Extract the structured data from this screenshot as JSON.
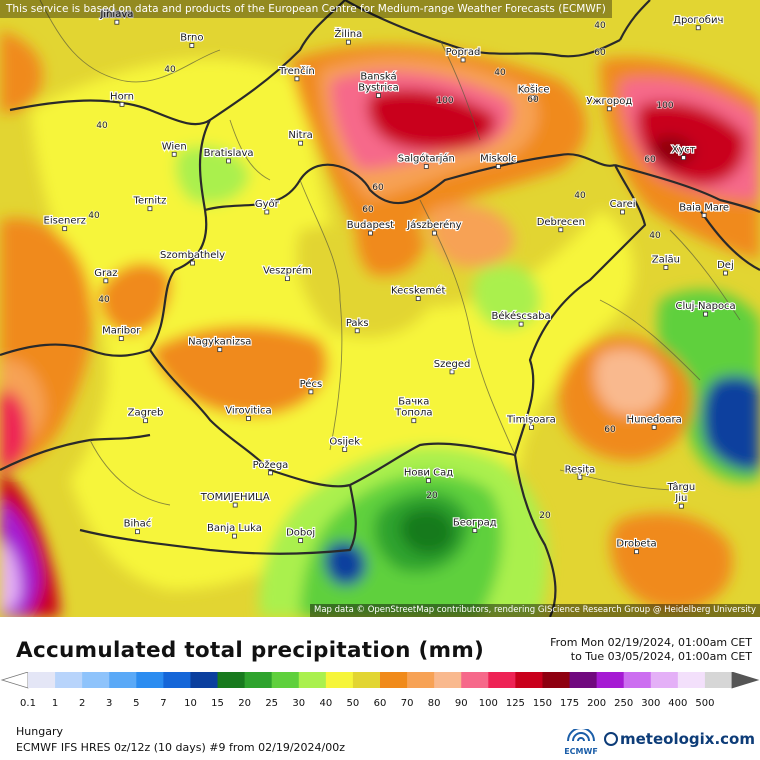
{
  "map": {
    "notice": "This service is based on data and products of the European Centre for Medium-range Weather Forecasts (ECMWF)",
    "attribution": "Map data © OpenStreetMap contributors, rendering GIScience Research Group @ Heidelberg University",
    "cities": [
      {
        "name": "Jihlava",
        "lon": 15.59,
        "lat": 49.4
      },
      {
        "name": "Brno",
        "lon": 16.61,
        "lat": 49.19
      },
      {
        "name": "Žilina",
        "lon": 18.74,
        "lat": 49.22
      },
      {
        "name": "Poprad",
        "lon": 20.3,
        "lat": 49.06
      },
      {
        "name": "Дрогобич",
        "lon": 23.5,
        "lat": 49.35
      },
      {
        "name": "Trenčín",
        "lon": 18.04,
        "lat": 48.89
      },
      {
        "name": "Banská Bystrica",
        "lon": 19.15,
        "lat": 48.74
      },
      {
        "name": "Košice",
        "lon": 21.26,
        "lat": 48.72
      },
      {
        "name": "Ужгород",
        "lon": 22.29,
        "lat": 48.62
      },
      {
        "name": "Horn",
        "lon": 15.66,
        "lat": 48.66
      },
      {
        "name": "Wien",
        "lon": 16.37,
        "lat": 48.21
      },
      {
        "name": "Bratislava",
        "lon": 17.11,
        "lat": 48.15
      },
      {
        "name": "Nitra",
        "lon": 18.09,
        "lat": 48.31
      },
      {
        "name": "Salgótarján",
        "lon": 19.8,
        "lat": 48.1
      },
      {
        "name": "Miskolc",
        "lon": 20.78,
        "lat": 48.1
      },
      {
        "name": "Хуст",
        "lon": 23.3,
        "lat": 48.18
      },
      {
        "name": "Ternitz",
        "lon": 16.04,
        "lat": 47.72
      },
      {
        "name": "Győr",
        "lon": 17.63,
        "lat": 47.69
      },
      {
        "name": "Carei",
        "lon": 22.47,
        "lat": 47.69
      },
      {
        "name": "Baia Mare",
        "lon": 23.58,
        "lat": 47.66
      },
      {
        "name": "Eisenerz",
        "lon": 14.88,
        "lat": 47.54
      },
      {
        "name": "Budapest",
        "lon": 19.04,
        "lat": 47.5
      },
      {
        "name": "Jászberény",
        "lon": 19.91,
        "lat": 47.5
      },
      {
        "name": "Debrecen",
        "lon": 21.63,
        "lat": 47.53
      },
      {
        "name": "Szombathely",
        "lon": 16.62,
        "lat": 47.23
      },
      {
        "name": "Zalău",
        "lon": 23.06,
        "lat": 47.19
      },
      {
        "name": "Graz",
        "lon": 15.44,
        "lat": 47.07
      },
      {
        "name": "Veszprém",
        "lon": 17.91,
        "lat": 47.09
      },
      {
        "name": "Kecskemét",
        "lon": 19.69,
        "lat": 46.91
      },
      {
        "name": "Dej",
        "lon": 23.87,
        "lat": 47.14
      },
      {
        "name": "Cluj-Napoca",
        "lon": 23.6,
        "lat": 46.77
      },
      {
        "name": "Maribor",
        "lon": 15.65,
        "lat": 46.55
      },
      {
        "name": "Paks",
        "lon": 18.86,
        "lat": 46.62
      },
      {
        "name": "Békéscsaba",
        "lon": 21.09,
        "lat": 46.68
      },
      {
        "name": "Nagykanizsa",
        "lon": 16.99,
        "lat": 46.45
      },
      {
        "name": "Szeged",
        "lon": 20.15,
        "lat": 46.25
      },
      {
        "name": "Pécs",
        "lon": 18.23,
        "lat": 46.07
      },
      {
        "name": "Zagreb",
        "lon": 15.98,
        "lat": 45.81
      },
      {
        "name": "Virovitica",
        "lon": 17.38,
        "lat": 45.83
      },
      {
        "name": "Бачка Топола",
        "lon": 19.63,
        "lat": 45.81
      },
      {
        "name": "Timișoara",
        "lon": 21.23,
        "lat": 45.75
      },
      {
        "name": "Hunedoara",
        "lon": 22.9,
        "lat": 45.75
      },
      {
        "name": "Osijek",
        "lon": 18.69,
        "lat": 45.55
      },
      {
        "name": "Požega",
        "lon": 17.68,
        "lat": 45.34
      },
      {
        "name": "Нови Сад",
        "lon": 19.83,
        "lat": 45.27
      },
      {
        "name": "Reșița",
        "lon": 21.89,
        "lat": 45.3
      },
      {
        "name": "Târgu Jiu",
        "lon": 23.27,
        "lat": 45.04
      },
      {
        "name": "ТОМИЈЕНИЦА",
        "lon": 17.2,
        "lat": 45.05
      },
      {
        "name": "Bihać",
        "lon": 15.87,
        "lat": 44.81
      },
      {
        "name": "Banja Luka",
        "lon": 17.19,
        "lat": 44.77
      },
      {
        "name": "Doboj",
        "lon": 18.09,
        "lat": 44.73
      },
      {
        "name": "Београд",
        "lon": 20.46,
        "lat": 44.82
      },
      {
        "name": "Drobeta",
        "lon": 22.66,
        "lat": 44.63
      }
    ],
    "contour_labels": [
      "40",
      "40",
      "40",
      "40",
      "40",
      "40",
      "40",
      "40",
      "60",
      "60",
      "60",
      "60",
      "60",
      "60",
      "100",
      "100",
      "20",
      "20"
    ]
  },
  "header": {
    "title": "Accumulated total precipitation (mm)",
    "period_from": "From Mon 02/19/2024, 01:00am CET",
    "period_to": "to Tue 03/05/2024, 01:00am CET"
  },
  "legend": {
    "unit": "mm",
    "classes": [
      {
        "label": "0.1",
        "color": "#e4e6f6"
      },
      {
        "label": "1",
        "color": "#b8d4fb"
      },
      {
        "label": "2",
        "color": "#8ec3fb"
      },
      {
        "label": "3",
        "color": "#5aa9f7"
      },
      {
        "label": "5",
        "color": "#2b8cf0"
      },
      {
        "label": "7",
        "color": "#1566d8"
      },
      {
        "label": "10",
        "color": "#0b3f9e"
      },
      {
        "label": "15",
        "color": "#187a1e"
      },
      {
        "label": "20",
        "color": "#2ea32d"
      },
      {
        "label": "25",
        "color": "#5fd03d"
      },
      {
        "label": "30",
        "color": "#aaf04e"
      },
      {
        "label": "40",
        "color": "#f6f53a"
      },
      {
        "label": "50",
        "color": "#e2d532"
      },
      {
        "label": "60",
        "color": "#f08a1a"
      },
      {
        "label": "70",
        "color": "#f7a255"
      },
      {
        "label": "80",
        "color": "#f9b98e"
      },
      {
        "label": "90",
        "color": "#f6698a"
      },
      {
        "label": "100",
        "color": "#ee2355"
      },
      {
        "label": "125",
        "color": "#c9001c"
      },
      {
        "label": "150",
        "color": "#8e0010"
      },
      {
        "label": "175",
        "color": "#70087e"
      },
      {
        "label": "200",
        "color": "#a51ad3"
      },
      {
        "label": "250",
        "color": "#cc6ef0"
      },
      {
        "label": "300",
        "color": "#e4b0f7"
      },
      {
        "label": "400",
        "color": "#f3e0fb"
      },
      {
        "label": "500",
        "color": "#d6d6d6"
      }
    ]
  },
  "footer": {
    "region": "Hungary",
    "model": "ECMWF IFS HRES 0z/12z (10 days) #9 from  02/19/2024/00z",
    "ecmwf_logo": "ECMWF",
    "brand": "meteologix.com"
  }
}
